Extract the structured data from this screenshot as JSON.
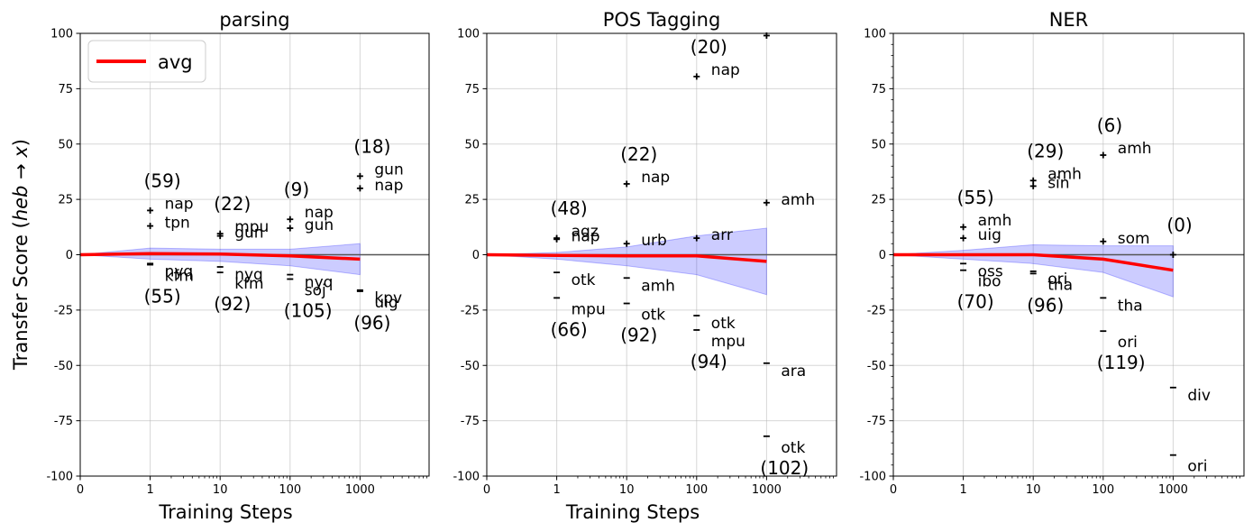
{
  "figure": {
    "ylabel_prefix": "Transfer Score (",
    "ylabel_var": "heb",
    "ylabel_arrow": " → ",
    "ylabel_target": "x",
    "ylabel_suffix": ")"
  },
  "legend": {
    "label": "avg",
    "color": "#ff0000",
    "placement": "upper-left"
  },
  "chart_data": [
    {
      "type": "scatter",
      "title": "parsing",
      "xlabel": "Training Steps",
      "x_scale": "symlog",
      "x_ticks": [
        "0",
        "1",
        "10",
        "100",
        "1000"
      ],
      "ylim": [
        -100,
        100
      ],
      "y_ticks": [
        -100,
        -75,
        -50,
        -25,
        0,
        25,
        50,
        75,
        100
      ],
      "grid": true,
      "avg_line": {
        "x": [
          0,
          1,
          10,
          100,
          1000
        ],
        "y": [
          0,
          0.5,
          0.3,
          -0.5,
          -2
        ]
      },
      "band": {
        "x": [
          0,
          1,
          10,
          100,
          1000
        ],
        "upper": [
          0,
          3,
          2.5,
          2.5,
          5
        ],
        "lower": [
          0,
          -2,
          -3,
          -5,
          -9
        ]
      },
      "best_marks": [
        {
          "step": 1,
          "values": [
            20,
            13
          ],
          "labels": [
            "nap",
            "tpn"
          ],
          "count": "(59)"
        },
        {
          "step": 10,
          "values": [
            9.5,
            8.5
          ],
          "labels": [
            "mpu",
            "gun"
          ],
          "count": "(22)"
        },
        {
          "step": 100,
          "values": [
            16,
            12
          ],
          "labels": [
            "nap",
            "gun"
          ],
          "count": "(9)"
        },
        {
          "step": 1000,
          "values": [
            35.5,
            30
          ],
          "labels": [
            "gun",
            "nap"
          ],
          "count": "(18)"
        }
      ],
      "worst_marks": [
        {
          "step": 1,
          "values": [
            -4,
            -4.5
          ],
          "labels": [
            "nyq",
            "kfm"
          ],
          "count": "(55)"
        },
        {
          "step": 10,
          "values": [
            -5.5,
            -8
          ],
          "labels": [
            "nyq",
            "kfm"
          ],
          "count": "(92)"
        },
        {
          "step": 100,
          "values": [
            -9,
            -11
          ],
          "labels": [
            "nyq",
            "soj"
          ],
          "count": "(105)"
        },
        {
          "step": 1000,
          "values": [
            -16,
            -16.5
          ],
          "labels": [
            "kpv",
            "uig"
          ],
          "count": "(96)"
        }
      ]
    },
    {
      "type": "scatter",
      "title": "POS Tagging",
      "xlabel": "Training Steps",
      "x_scale": "symlog",
      "x_ticks": [
        "0",
        "1",
        "10",
        "100",
        "1000"
      ],
      "ylim": [
        -100,
        100
      ],
      "y_ticks": [
        -100,
        -75,
        -50,
        -25,
        0,
        25,
        50,
        75,
        100
      ],
      "grid": true,
      "avg_line": {
        "x": [
          0,
          1,
          10,
          100,
          1000
        ],
        "y": [
          0,
          -0.3,
          -0.5,
          -0.5,
          -3
        ]
      },
      "band": {
        "x": [
          0,
          1,
          10,
          100,
          1000
        ],
        "upper": [
          0,
          1,
          3.5,
          8.5,
          12
        ],
        "lower": [
          0,
          -2,
          -5,
          -9,
          -18
        ]
      },
      "best_marks": [
        {
          "step": 1,
          "values": [
            7.5,
            7
          ],
          "labels": [
            "aqz",
            "nap"
          ],
          "count": "(48)"
        },
        {
          "step": 10,
          "values": [
            32,
            5
          ],
          "labels": [
            "nap",
            "urb"
          ],
          "count": "(22)"
        },
        {
          "step": 100,
          "values": [
            80.5,
            7.5
          ],
          "labels": [
            "nap",
            "arr"
          ],
          "count": "(20)"
        },
        {
          "step": 1000,
          "values": [
            99,
            23.5
          ],
          "labels": [
            "",
            "amh"
          ],
          "count": ""
        }
      ],
      "worst_marks": [
        {
          "step": 1,
          "values": [
            -8,
            -19.5
          ],
          "labels": [
            "otk",
            "mpu"
          ],
          "count": "(66)"
        },
        {
          "step": 10,
          "values": [
            -10.5,
            -22
          ],
          "labels": [
            "amh",
            "otk"
          ],
          "count": "(92)"
        },
        {
          "step": 100,
          "values": [
            -27.5,
            -34
          ],
          "labels": [
            "otk",
            "mpu"
          ],
          "count": "(94)"
        },
        {
          "step": 1000,
          "values": [
            -49,
            -82
          ],
          "labels": [
            "ara",
            "otk"
          ],
          "count": "(102)"
        }
      ]
    },
    {
      "type": "scatter",
      "title": "NER",
      "xlabel": "",
      "x_scale": "symlog",
      "x_ticks": [
        "0",
        "1",
        "10",
        "100",
        "1000"
      ],
      "ylim": [
        -100,
        100
      ],
      "y_ticks": [
        -100,
        -75,
        -50,
        -25,
        0,
        25,
        50,
        75,
        100
      ],
      "grid": true,
      "avg_line": {
        "x": [
          0,
          1,
          10,
          100,
          1000
        ],
        "y": [
          0,
          0,
          0,
          -2,
          -7
        ]
      },
      "band": {
        "x": [
          0,
          1,
          10,
          100,
          1000
        ],
        "upper": [
          0,
          2,
          4.5,
          4,
          4
        ],
        "lower": [
          0,
          -2,
          -4,
          -8,
          -19
        ]
      },
      "best_marks": [
        {
          "step": 1,
          "values": [
            12.5,
            7.5
          ],
          "labels": [
            "amh",
            "uig"
          ],
          "count": "(55)"
        },
        {
          "step": 10,
          "values": [
            33.5,
            31
          ],
          "labels": [
            "amh",
            "sin"
          ],
          "count": "(29)"
        },
        {
          "step": 100,
          "values": [
            45,
            6
          ],
          "labels": [
            "amh",
            "som"
          ],
          "count": "(6)"
        },
        {
          "step": 1000,
          "values": [
            0
          ],
          "labels": [
            ""
          ],
          "count": "(0)"
        }
      ],
      "worst_marks": [
        {
          "step": 1,
          "values": [
            -4,
            -7
          ],
          "labels": [
            "oss",
            "ibo"
          ],
          "count": "(70)"
        },
        {
          "step": 10,
          "values": [
            -7.5,
            -8.5
          ],
          "labels": [
            "ori",
            "tha"
          ],
          "count": "(96)"
        },
        {
          "step": 100,
          "values": [
            -19.5,
            -34.5
          ],
          "labels": [
            "tha",
            "ori"
          ],
          "count": "(119)"
        },
        {
          "step": 1000,
          "values": [
            -60,
            -90.5
          ],
          "labels": [
            "div",
            "ori"
          ],
          "count": ""
        }
      ]
    }
  ]
}
